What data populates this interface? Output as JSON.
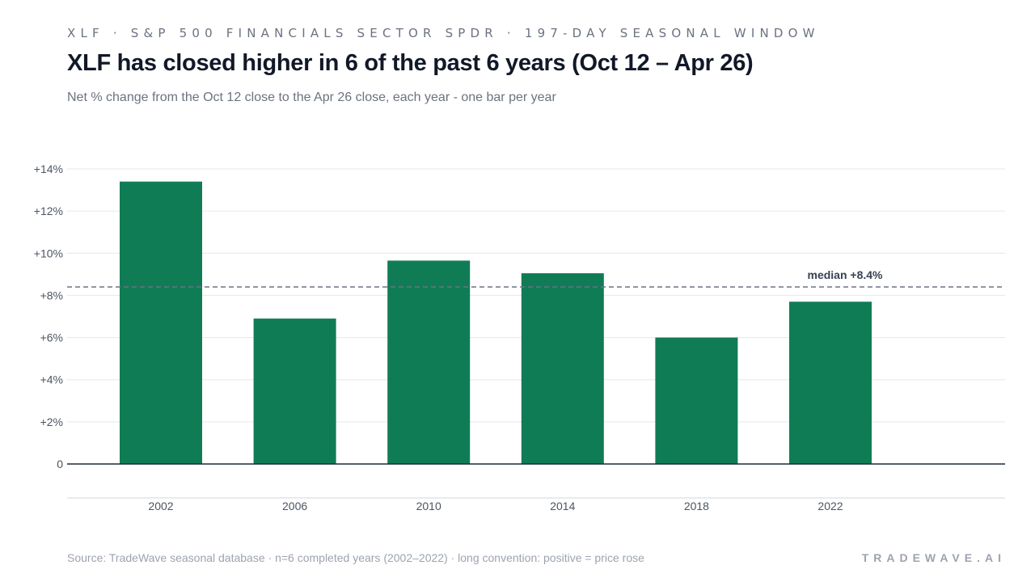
{
  "header": {
    "eyebrow": "XLF · S&P 500 FINANCIALS SECTOR SPDR · 197-DAY SEASONAL WINDOW",
    "title": "XLF has closed higher in 6 of the past 6 years (Oct 12 – Apr 26)",
    "subtitle": "Net % change from the Oct 12 close to the Apr 26 close, each year - one bar per year"
  },
  "footer": {
    "source": "Source: TradeWave seasonal database · n=6 completed years (2002–2022) · long convention: positive = price rose",
    "brand": "TRADEWAVE.AI"
  },
  "colors": {
    "bar": "#107c55",
    "median_line": "#6b7280",
    "grid": "#e5e7eb",
    "zero_line": "#1f2937"
  },
  "chart_data": {
    "type": "bar",
    "categories": [
      "2002",
      "2006",
      "2010",
      "2014",
      "2018",
      "2022"
    ],
    "values": [
      13.4,
      6.9,
      9.65,
      9.05,
      6.0,
      7.7
    ],
    "ylim": [
      0,
      14
    ],
    "yticks": [
      {
        "value": 0,
        "label": "0"
      },
      {
        "value": 2,
        "label": "+2%"
      },
      {
        "value": 4,
        "label": "+4%"
      },
      {
        "value": 6,
        "label": "+6%"
      },
      {
        "value": 8,
        "label": "+8%"
      },
      {
        "value": 10,
        "label": "+10%"
      },
      {
        "value": 12,
        "label": "+12%"
      },
      {
        "value": 14,
        "label": "+14%"
      }
    ],
    "grid": true,
    "median": {
      "value": 8.4,
      "label": "median +8.4%"
    }
  }
}
